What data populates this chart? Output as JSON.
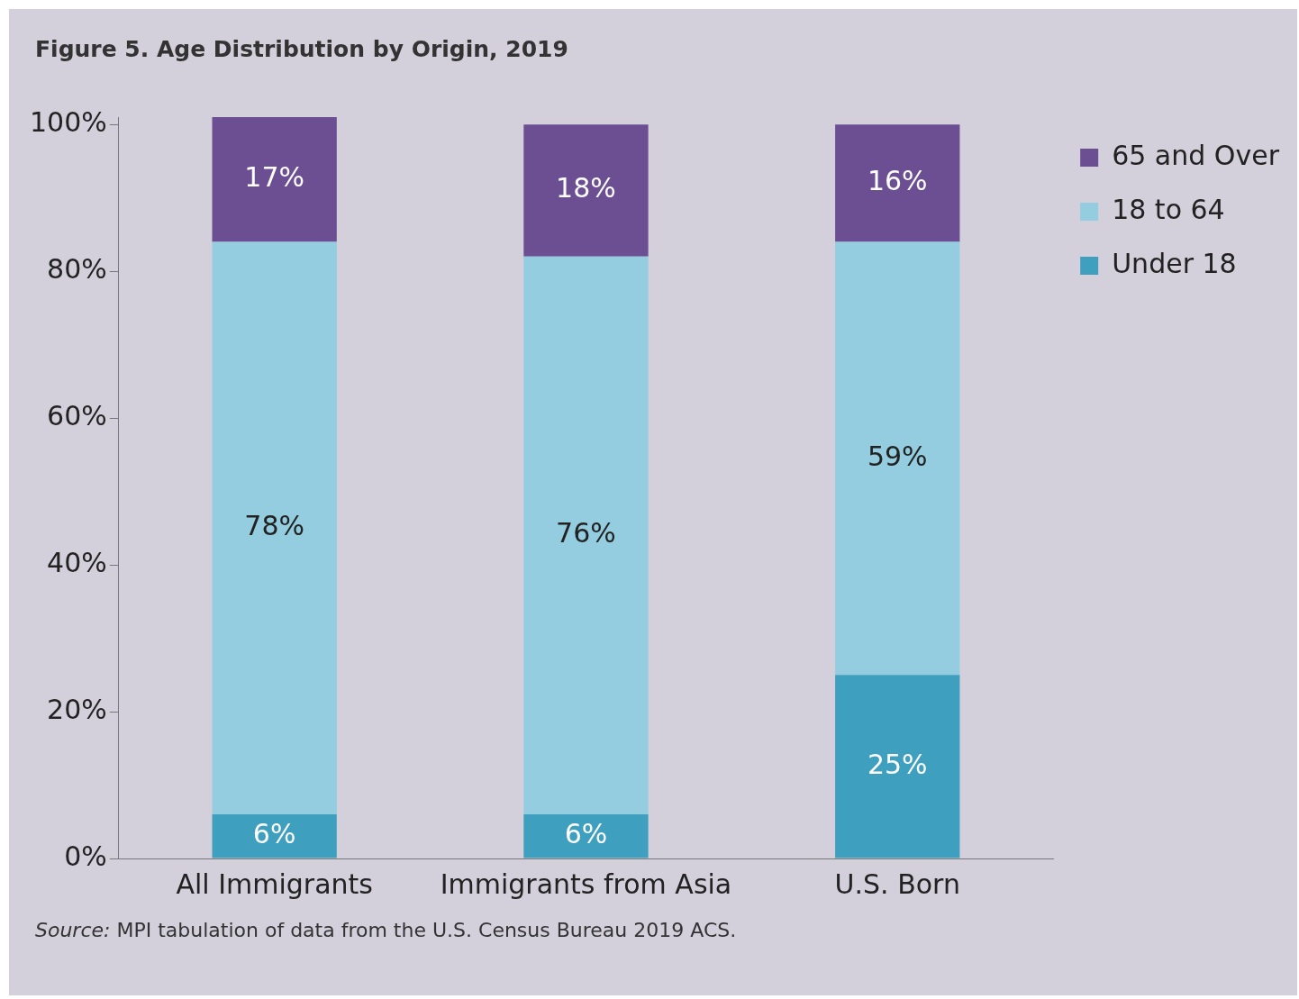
{
  "chart_data": {
    "type": "bar",
    "title": "Figure 5. Age Distribution by Origin, 2019",
    "categories": [
      "All Immigrants",
      "Immigrants from Asia",
      "U.S. Born"
    ],
    "stacked": true,
    "series": [
      {
        "name": "Under 18",
        "color": "#3f9fbf",
        "values": [
          6,
          6,
          25
        ],
        "value_labels": [
          "6%",
          "6%",
          "25%"
        ]
      },
      {
        "name": "18 to 64",
        "color": "#93cddf",
        "values": [
          78,
          76,
          59
        ],
        "value_labels": [
          "78%",
          "76%",
          "59%"
        ]
      },
      {
        "name": "65 and Over",
        "color": "#6c4f93",
        "values": [
          17,
          18,
          16
        ],
        "value_labels": [
          "17%",
          "18%",
          "16%"
        ]
      }
    ],
    "ylim": [
      0,
      101
    ],
    "yticks": [
      {
        "value": 0,
        "label": "0%"
      },
      {
        "value": 20,
        "label": "20%"
      },
      {
        "value": 40,
        "label": "40%"
      },
      {
        "value": 60,
        "label": "60%"
      },
      {
        "value": 80,
        "label": "80%"
      },
      {
        "value": 100,
        "label": "100%"
      }
    ],
    "grid": false,
    "legend": "right",
    "annotations": [
      "Source: MPI tabulation of data from the U.S. Census Bureau 2019 ACS."
    ]
  }
}
